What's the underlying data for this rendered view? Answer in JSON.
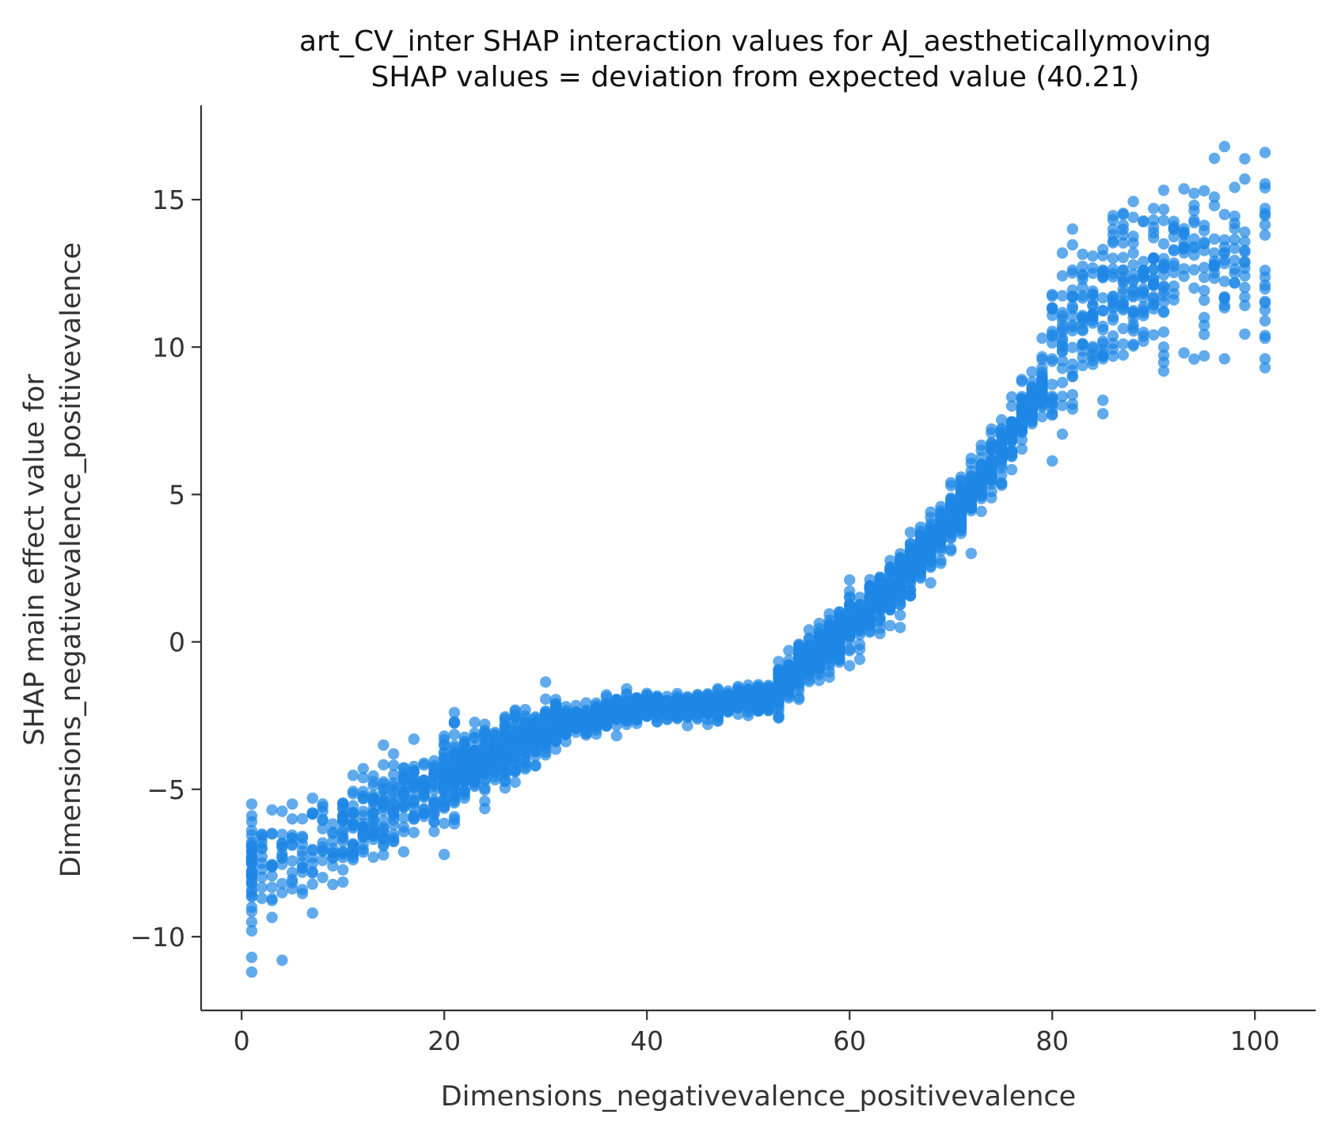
{
  "chart_data": {
    "type": "scatter",
    "title": "art_CV_inter SHAP interaction values for AJ_aestheticallymoving",
    "subtitle": "SHAP values = deviation from expected value (40.21)",
    "xlabel": "Dimensions_negativevalence_positivevalence",
    "ylabel_line1": "SHAP main effect value for",
    "ylabel_line2": "Dimensions_negativevalence_positivevalence",
    "xlim": [
      -4,
      106
    ],
    "ylim": [
      -12.5,
      18.2
    ],
    "x_ticks": [
      0,
      20,
      40,
      60,
      80,
      100
    ],
    "y_ticks": [
      -10,
      -5,
      0,
      5,
      10,
      15
    ],
    "x_tick_labels": [
      "0",
      "20",
      "40",
      "60",
      "80",
      "100"
    ],
    "y_tick_labels": [
      "−10",
      "−5",
      "0",
      "5",
      "10",
      "15"
    ],
    "point_color": "#1e88e5",
    "point_opacity": 0.7,
    "trend_knots": [
      [
        1,
        -7.6
      ],
      [
        10,
        -6.6
      ],
      [
        20,
        -4.6
      ],
      [
        30,
        -3.0
      ],
      [
        37,
        -2.3
      ],
      [
        45,
        -2.2
      ],
      [
        52,
        -1.9
      ],
      [
        57,
        -0.3
      ],
      [
        62,
        1.1
      ],
      [
        67,
        2.9
      ],
      [
        72,
        5.0
      ],
      [
        78,
        8.0
      ],
      [
        82,
        10.6
      ],
      [
        86,
        12.0
      ],
      [
        92,
        12.6
      ],
      [
        101,
        12.8
      ]
    ],
    "points": [
      [
        1,
        -11.2
      ],
      [
        1,
        -10.7
      ],
      [
        4,
        -10.8
      ],
      [
        7,
        -9.2
      ],
      [
        1,
        -9.8
      ],
      [
        1,
        -9.5
      ],
      [
        1,
        -9.0
      ],
      [
        1,
        -8.6
      ],
      [
        1,
        -8.2
      ],
      [
        1,
        -7.9
      ],
      [
        1,
        -7.5
      ],
      [
        1,
        -7.1
      ],
      [
        1,
        -6.8
      ],
      [
        1,
        -6.4
      ],
      [
        1,
        -6.1
      ],
      [
        1,
        -5.9
      ],
      [
        1,
        -5.5
      ],
      [
        2,
        -8.7
      ],
      [
        2,
        -7.0
      ],
      [
        3,
        -6.5
      ],
      [
        3,
        -5.7
      ],
      [
        4,
        -8.2
      ],
      [
        4,
        -7.3
      ],
      [
        5,
        -6.9
      ],
      [
        5,
        -5.5
      ],
      [
        6,
        -8.4
      ],
      [
        6,
        -6.0
      ],
      [
        7,
        -7.8
      ],
      [
        7,
        -5.3
      ],
      [
        8,
        -7.1
      ],
      [
        8,
        -5.5
      ],
      [
        9,
        -6.5
      ],
      [
        10,
        -7.2
      ],
      [
        10,
        -5.9
      ],
      [
        12,
        -4.3
      ],
      [
        13,
        -6.6
      ],
      [
        14,
        -3.5
      ],
      [
        15,
        -3.8
      ],
      [
        16,
        -5.6
      ],
      [
        17,
        -3.3
      ],
      [
        18,
        -4.7
      ],
      [
        19,
        -6.1
      ],
      [
        20,
        -3.2
      ],
      [
        21,
        -5.3
      ],
      [
        22,
        -3.6
      ],
      [
        23,
        -4.9
      ],
      [
        24,
        -3.0
      ],
      [
        25,
        -4.3
      ],
      [
        26,
        -2.6
      ],
      [
        27,
        -3.9
      ],
      [
        28,
        -2.3
      ],
      [
        30,
        -3.4
      ],
      [
        32,
        -2.2
      ],
      [
        34,
        -2.9
      ],
      [
        36,
        -1.8
      ],
      [
        38,
        -2.6
      ],
      [
        40,
        -2.0
      ],
      [
        42,
        -2.4
      ],
      [
        44,
        -1.9
      ],
      [
        46,
        -2.3
      ],
      [
        48,
        -1.8
      ],
      [
        50,
        -2.5
      ],
      [
        52,
        -1.6
      ],
      [
        53,
        -2.2
      ],
      [
        54,
        -0.9
      ],
      [
        55,
        -1.4
      ],
      [
        56,
        -0.2
      ],
      [
        57,
        -1.1
      ],
      [
        58,
        0.4
      ],
      [
        59,
        0.9
      ],
      [
        60,
        1.1
      ],
      [
        60,
        2.1
      ],
      [
        61,
        0.5
      ],
      [
        62,
        1.8
      ],
      [
        63,
        1.3
      ],
      [
        64,
        2.5
      ],
      [
        65,
        1.9
      ],
      [
        66,
        3.2
      ],
      [
        67,
        2.6
      ],
      [
        68,
        4.0
      ],
      [
        68,
        3.4
      ],
      [
        69,
        3.7
      ],
      [
        70,
        4.6
      ],
      [
        70,
        5.3
      ],
      [
        71,
        4.2
      ],
      [
        72,
        5.6
      ],
      [
        72,
        3.0
      ],
      [
        73,
        6.5
      ],
      [
        74,
        5.1
      ],
      [
        75,
        7.1
      ],
      [
        76,
        6.3
      ],
      [
        76,
        8.0
      ],
      [
        77,
        7.4
      ],
      [
        77,
        8.9
      ],
      [
        78,
        7.9
      ],
      [
        79,
        9.3
      ],
      [
        79,
        10.3
      ],
      [
        80,
        8.2
      ],
      [
        80,
        9.6
      ],
      [
        81,
        10.6
      ],
      [
        82,
        9.0
      ],
      [
        82,
        11.3
      ],
      [
        83,
        10.1
      ],
      [
        84,
        11.9
      ],
      [
        84,
        12.5
      ],
      [
        85,
        9.6
      ],
      [
        85,
        13.1
      ],
      [
        86,
        11.5
      ],
      [
        86,
        13.6
      ],
      [
        87,
        12.2
      ],
      [
        87,
        13.8
      ],
      [
        88,
        11.0
      ],
      [
        88,
        14.4
      ],
      [
        89,
        12.9
      ],
      [
        89,
        10.2
      ],
      [
        90,
        13.0
      ],
      [
        90,
        11.7
      ],
      [
        90,
        14.7
      ],
      [
        91,
        12.7
      ],
      [
        91,
        10.0
      ],
      [
        92,
        14.1
      ],
      [
        92,
        13.3
      ],
      [
        92,
        11.6
      ],
      [
        93,
        12.4
      ],
      [
        93,
        13.9
      ],
      [
        93,
        9.8
      ],
      [
        94,
        12.0
      ],
      [
        94,
        14.3
      ],
      [
        95,
        13.5
      ],
      [
        95,
        15.3
      ],
      [
        95,
        11.0
      ],
      [
        95,
        9.7
      ],
      [
        96,
        12.8
      ],
      [
        96,
        14.8
      ],
      [
        97,
        13.2
      ],
      [
        97,
        11.7
      ],
      [
        97,
        16.8
      ],
      [
        97,
        9.6
      ],
      [
        97,
        14.5
      ],
      [
        98,
        12.5
      ],
      [
        99,
        15.7
      ],
      [
        99,
        11.7
      ],
      [
        99,
        13.9
      ],
      [
        99,
        12.9
      ],
      [
        101,
        16.6
      ],
      [
        101,
        15.4
      ],
      [
        101,
        14.7
      ],
      [
        101,
        13.8
      ],
      [
        101,
        12.6
      ],
      [
        101,
        12.1
      ],
      [
        101,
        11.5
      ],
      [
        101,
        10.3
      ],
      [
        101,
        9.6
      ],
      [
        101,
        9.3
      ]
    ]
  }
}
